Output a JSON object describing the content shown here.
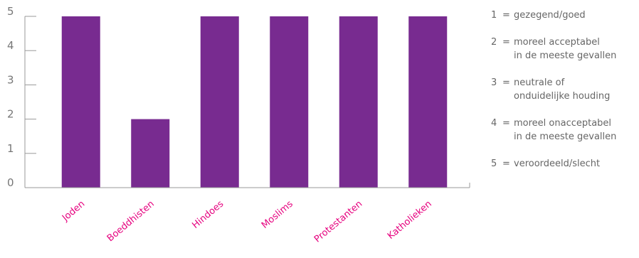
{
  "chart_data": {
    "type": "bar",
    "categories": [
      "Joden",
      "Boeddhisten",
      "Hindoes",
      "Moslims",
      "Protestanten",
      "Katholieken"
    ],
    "values": [
      5,
      2,
      5,
      5,
      5,
      5
    ],
    "ylim": [
      0,
      5
    ],
    "yticks": [
      "0",
      "1",
      "2",
      "3",
      "4",
      "5"
    ],
    "title": "",
    "xlabel": "",
    "ylabel": "",
    "bar_color": "#782b90",
    "tick_label_color": "#e6007e",
    "axis_color": "#999999",
    "grid": false
  },
  "legend": {
    "placement": "right",
    "items": [
      {
        "num": "1",
        "eq": "=",
        "text": "gezegend/goed"
      },
      {
        "num": "2",
        "eq": "=",
        "text": "moreel acceptabel\nin de meeste gevallen"
      },
      {
        "num": "3",
        "eq": "=",
        "text": "neutrale of\nonduidelijke houding"
      },
      {
        "num": "4",
        "eq": "=",
        "text": "moreel onacceptabel\nin de meeste gevallen"
      },
      {
        "num": "5",
        "eq": "=",
        "text": "veroordeeld/slecht"
      }
    ]
  }
}
